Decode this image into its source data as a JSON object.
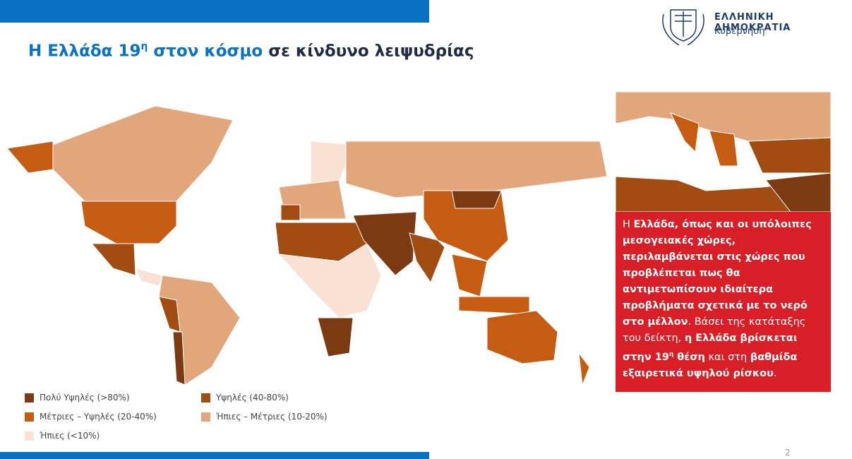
{
  "header": {
    "title": [
      {
        "text": "Η Ελλάδα 19",
        "style": "accent"
      },
      {
        "text": "η",
        "style": "accent-sup"
      },
      {
        "text": " στον κόσμο",
        "style": "accent"
      },
      {
        "text": " σε κίνδυνο λειψυδρίας",
        "style": "dark"
      }
    ],
    "logo": {
      "name": "ΕΛΛΗΝΙΚΗ ΔΗΜΟΚΡΑΤΙΑ",
      "subtitle": "Κυβέρνηση"
    }
  },
  "legend": [
    {
      "label": "Πολύ Υψηλές (>80%)",
      "color": "#7b3a12"
    },
    {
      "label": "Υψηλές (40-80%)",
      "color": "#a24c12"
    },
    {
      "label": "Μέτριες – Υψηλές (20-40%)",
      "color": "#c65b12"
    },
    {
      "label": "Ήπιες – Μέτριες (10-20%)",
      "color": "#e2a67c"
    },
    {
      "label": "Ήπιες (<10%)",
      "color": "#f9e2d3"
    }
  ],
  "callout": [
    {
      "text": "Η ",
      "style": "normal"
    },
    {
      "text": "Ελλάδα, όπως και οι υπόλοιπες μεσογειακές χώρες, περιλαμβάνεται στις χώρες που προβλέπεται πως θα αντιμετωπίσουν ιδιαίτερα προβλήματα σχετικά με το νερό στο μέλλον",
      "style": "bold"
    },
    {
      "text": ". Βάσει της κατάταξης του δείκτη, ",
      "style": "normal"
    },
    {
      "text": "η Ελλάδα βρίσκεται στην 19",
      "style": "bold"
    },
    {
      "text": "η",
      "style": "bold-sup"
    },
    {
      "text": " θέση",
      "style": "bold"
    },
    {
      "text": " και στη ",
      "style": "normal"
    },
    {
      "text": "βαθμίδα εξαιρετικά υψηλού ρίσκου",
      "style": "bold"
    },
    {
      "text": ".",
      "style": "normal"
    }
  ],
  "page_number": "2"
}
